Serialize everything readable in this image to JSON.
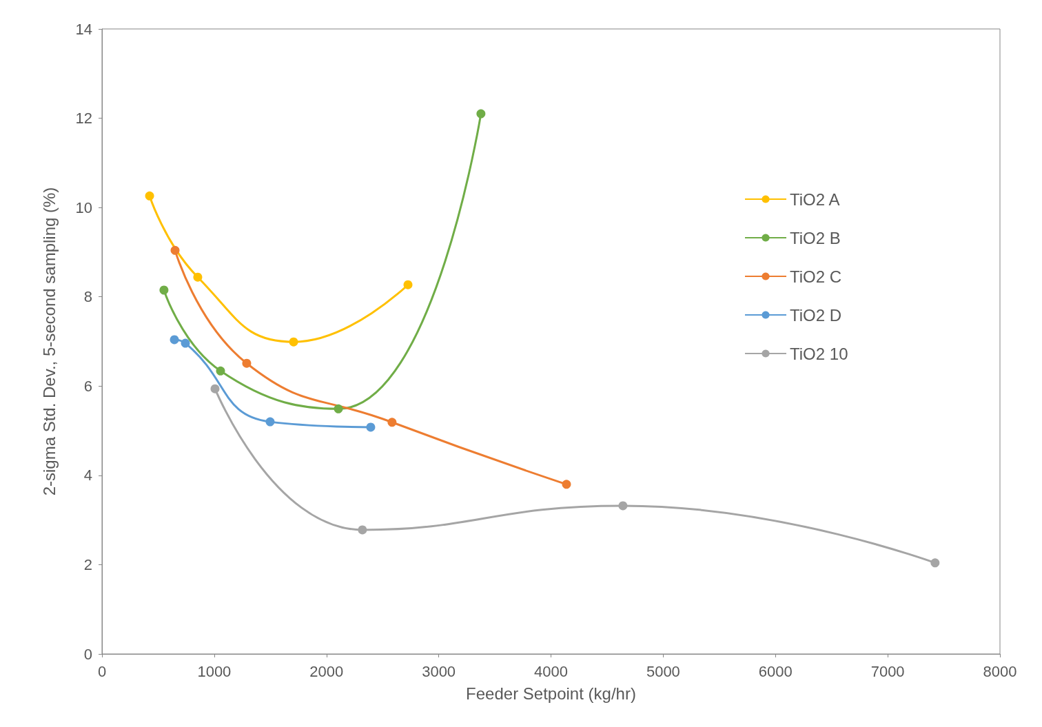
{
  "chart_data": {
    "type": "line",
    "xlabel": "Feeder Setpoint (kg/hr)",
    "ylabel": "2-sigma Std. Dev., 5-second sampling (%)",
    "xlim": [
      0,
      8000
    ],
    "xticks": [
      0,
      1000,
      2000,
      3000,
      4000,
      5000,
      6000,
      7000,
      8000
    ],
    "ylim": [
      0,
      14
    ],
    "yticks": [
      0,
      2,
      4,
      6,
      8,
      10,
      12,
      14
    ],
    "grid": false,
    "legend": "right",
    "marker": "circle",
    "line_style": "solid",
    "series": [
      {
        "name": "TiO2 A",
        "color": "#ffc000",
        "x": [
          424,
          853,
          1707,
          2726
        ],
        "values": [
          10.26,
          8.44,
          6.99,
          8.27
        ]
      },
      {
        "name": "TiO2 B",
        "color": "#70ad47",
        "x": [
          552,
          1056,
          2106,
          3376
        ],
        "values": [
          8.15,
          6.34,
          5.49,
          12.1
        ]
      },
      {
        "name": "TiO2 C",
        "color": "#ed7d31",
        "x": [
          651,
          1289,
          2584,
          4138
        ],
        "values": [
          9.04,
          6.51,
          5.19,
          3.8
        ]
      },
      {
        "name": "TiO2 D",
        "color": "#5b9bd5",
        "x": [
          645,
          743,
          1498,
          2394
        ],
        "values": [
          7.04,
          6.96,
          5.2,
          5.08
        ]
      },
      {
        "name": "TiO2 10",
        "color": "#a5a5a5",
        "x": [
          1007,
          2320,
          4641,
          7422
        ],
        "values": [
          5.94,
          2.78,
          3.32,
          2.04
        ]
      }
    ]
  }
}
